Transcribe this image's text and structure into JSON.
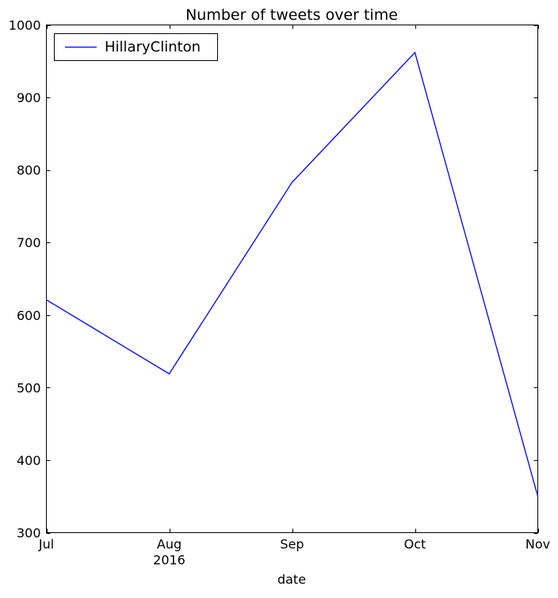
{
  "chart_data": {
    "type": "line",
    "title": "Number of tweets over time",
    "xlabel": "date",
    "ylabel": "",
    "x": [
      "2016-07",
      "2016-08",
      "2016-09",
      "2016-10",
      "2016-11"
    ],
    "x_tick_labels": [
      {
        "label": "Jul",
        "sublabel": ""
      },
      {
        "label": "Aug",
        "sublabel": "2016"
      },
      {
        "label": "Sep",
        "sublabel": ""
      },
      {
        "label": "Oct",
        "sublabel": ""
      },
      {
        "label": "Nov",
        "sublabel": ""
      }
    ],
    "ylim": [
      300,
      1000
    ],
    "y_ticks": [
      300,
      400,
      500,
      600,
      700,
      800,
      900,
      1000
    ],
    "grid": false,
    "legend_position": "upper-left",
    "series": [
      {
        "name": "HillaryClinton",
        "color": "#0000ff",
        "values": [
          621,
          519,
          783,
          962,
          350
        ]
      }
    ]
  }
}
